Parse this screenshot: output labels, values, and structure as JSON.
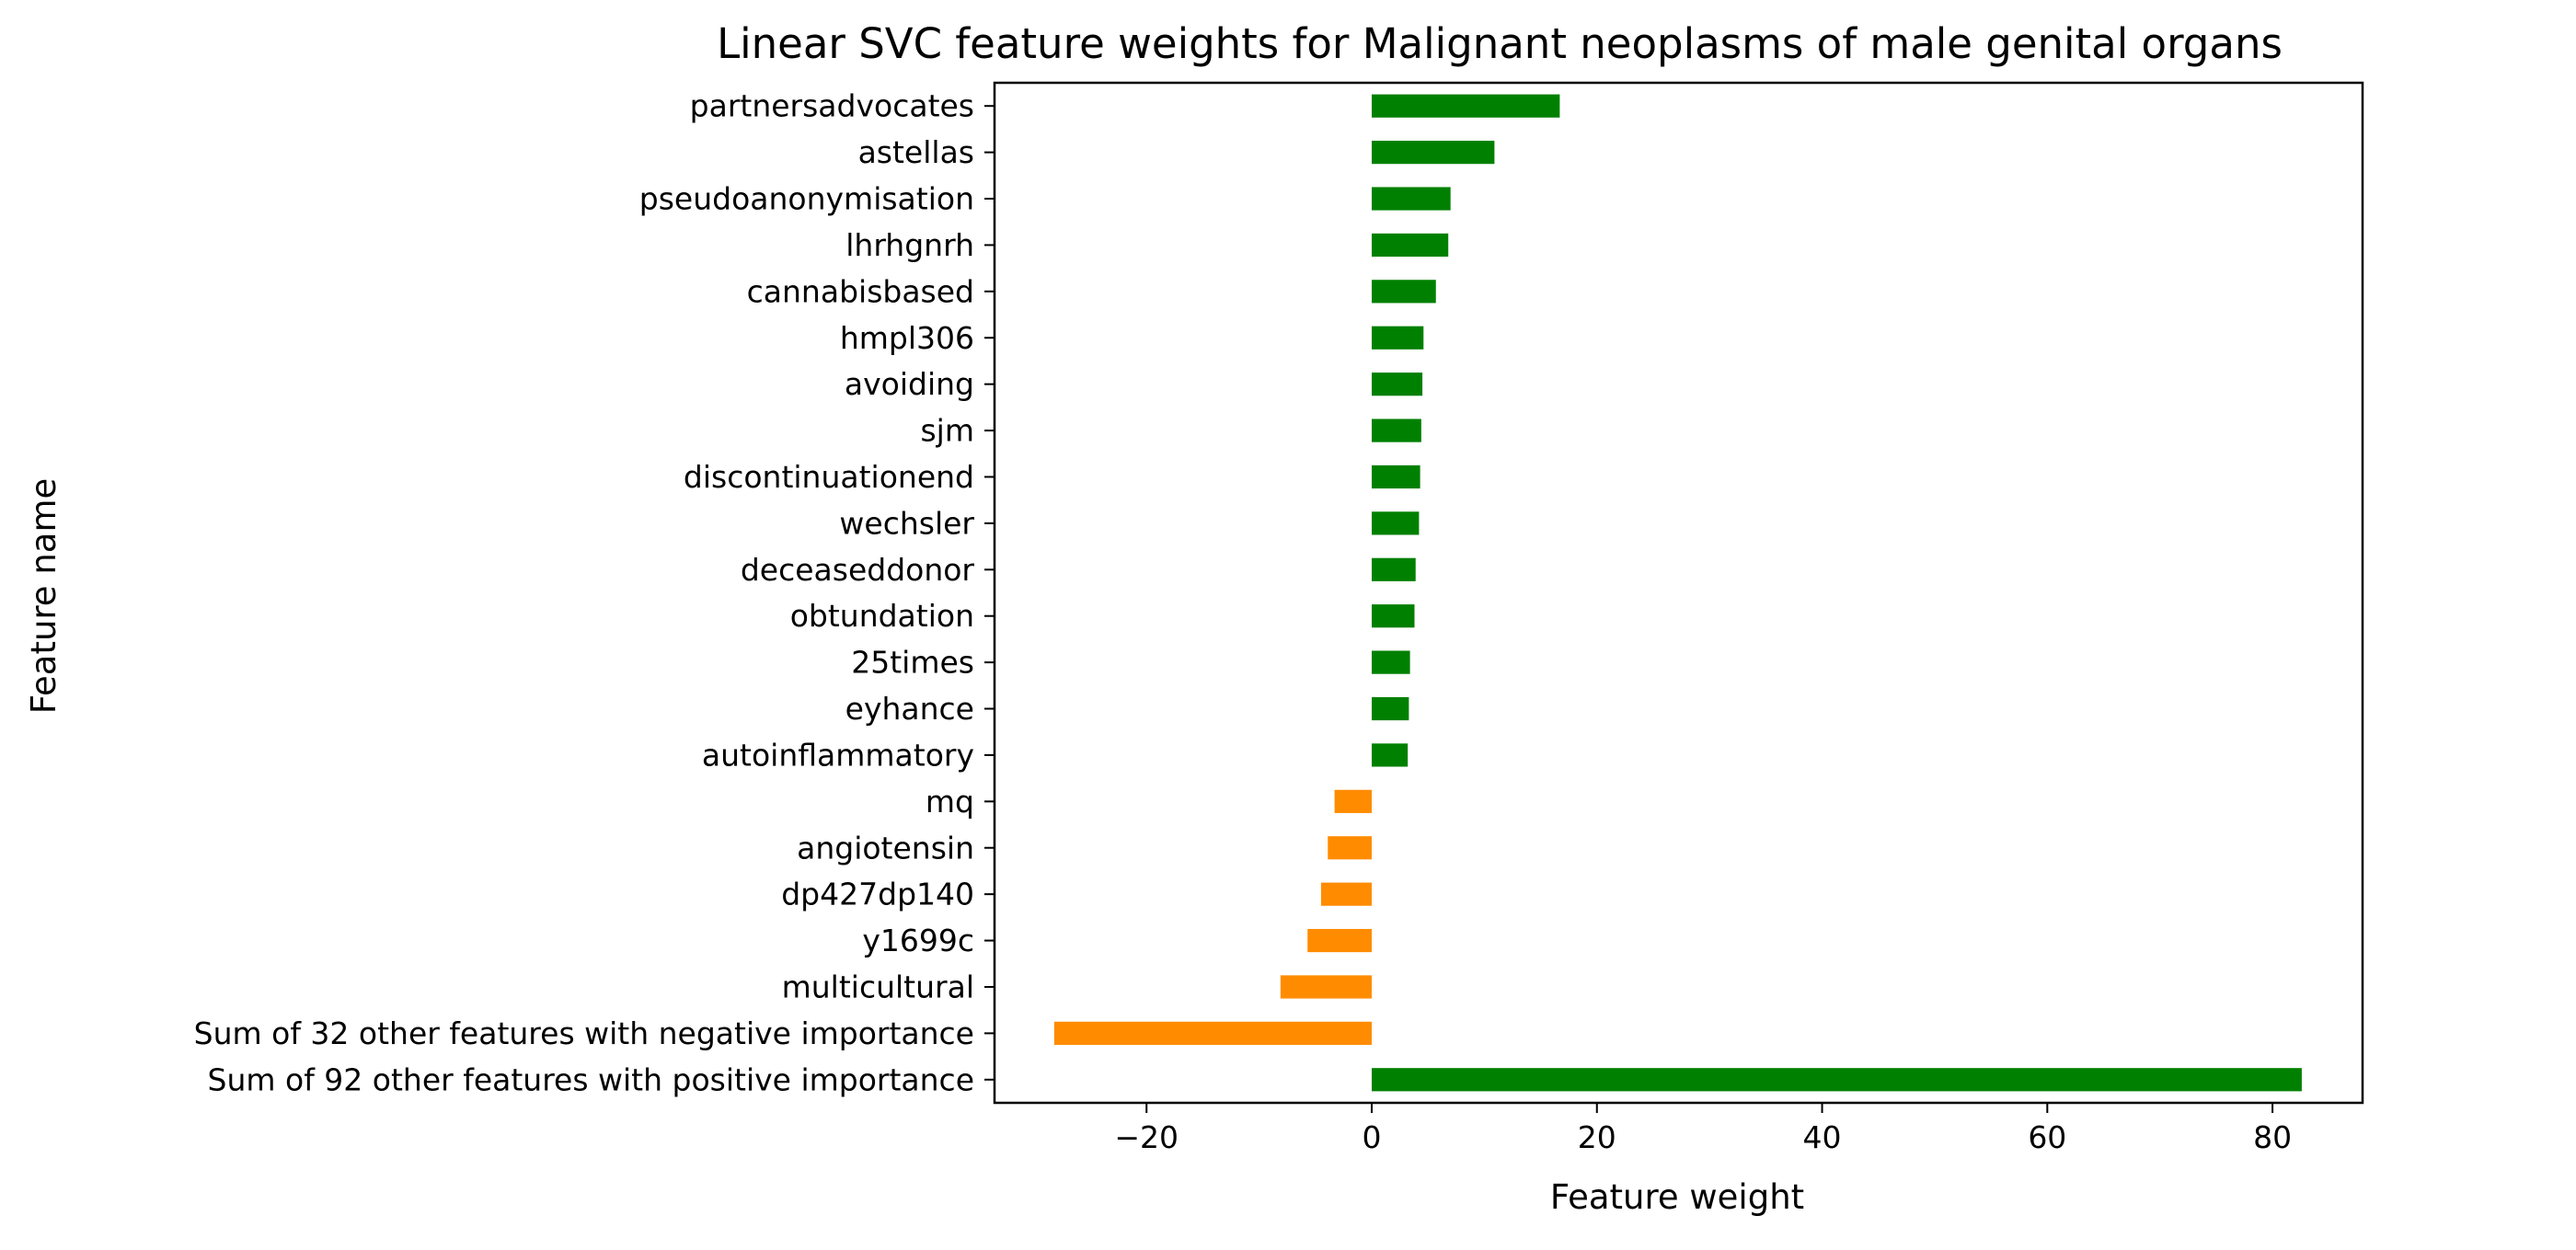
{
  "chart_data": {
    "type": "bar",
    "orientation": "horizontal",
    "title": "Linear SVC feature weights for Malignant neoplasms of male genital organs",
    "xlabel": "Feature weight",
    "ylabel": "Feature name",
    "xlim": [
      -33.5,
      88
    ],
    "xticks": [
      -20,
      0,
      20,
      40,
      60,
      80
    ],
    "xtick_labels": [
      "−20",
      "0",
      "20",
      "40",
      "60",
      "80"
    ],
    "grid": false,
    "legend": "none",
    "colors": {
      "positive": "#008000",
      "negative": "#ff8c00",
      "axes": "#000000",
      "background": "#ffffff"
    },
    "categories": [
      "partnersadvocates",
      "astellas",
      "pseudoanonymisation",
      "lhrhgnrh",
      "cannabisbased",
      "hmpl306",
      "avoiding",
      "sjm",
      "discontinuationend",
      "wechsler",
      "deceaseddonor",
      "obtundation",
      "25times",
      "eyhance",
      "autoinflammatory",
      "mq",
      "angiotensin",
      "dp427dp140",
      "y1699c",
      "multicultural",
      "Sum of 32 other features with negative importance",
      "Sum of 92 other features with positive importance"
    ],
    "values": [
      16.7,
      10.9,
      7.0,
      6.8,
      5.7,
      4.6,
      4.5,
      4.4,
      4.3,
      4.2,
      3.9,
      3.8,
      3.4,
      3.3,
      3.2,
      -3.3,
      -3.9,
      -4.5,
      -5.7,
      -8.1,
      -28.2,
      82.6
    ]
  }
}
